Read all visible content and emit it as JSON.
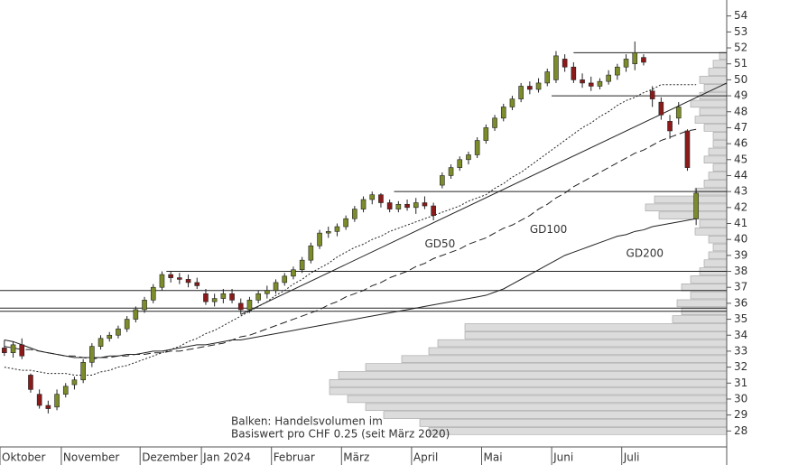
{
  "chart_data": {
    "type": "candlestick",
    "categories": [
      "Oktober",
      null,
      null,
      null,
      null,
      null,
      null,
      "November",
      null,
      null,
      null,
      null,
      null,
      null,
      null,
      null,
      "Dezember",
      null,
      null,
      null,
      null,
      null,
      null,
      "Jan 2024",
      null,
      null,
      null,
      null,
      null,
      null,
      null,
      "Februar",
      null,
      null,
      null,
      null,
      null,
      null,
      null,
      "März",
      null,
      null,
      null,
      null,
      null,
      null,
      null,
      "April",
      null,
      null,
      null,
      null,
      null,
      null,
      null,
      "Mai",
      null,
      null,
      null,
      null,
      null,
      null,
      null,
      "Juni",
      null,
      null,
      null,
      null,
      null,
      null,
      null,
      "Juli",
      null,
      null,
      null,
      null,
      null,
      null,
      null,
      null
    ],
    "ohlc": [
      [
        33.2,
        33.7,
        32.7,
        32.9
      ],
      [
        32.9,
        33.6,
        32.6,
        33.4
      ],
      [
        33.4,
        33.8,
        32.5,
        32.7
      ],
      [
        31.5,
        31.6,
        30.4,
        30.6
      ],
      [
        30.3,
        30.6,
        29.4,
        29.6
      ],
      [
        29.6,
        29.9,
        29.1,
        29.4
      ],
      [
        29.5,
        30.6,
        29.3,
        30.3
      ],
      [
        30.3,
        31.0,
        30.1,
        30.8
      ],
      [
        30.9,
        31.4,
        30.6,
        31.2
      ],
      [
        31.2,
        32.5,
        31.0,
        32.3
      ],
      [
        32.3,
        33.5,
        32.0,
        33.3
      ],
      [
        33.3,
        34.0,
        33.1,
        33.8
      ],
      [
        33.8,
        34.2,
        33.6,
        34.0
      ],
      [
        34.0,
        34.6,
        33.8,
        34.4
      ],
      [
        34.4,
        35.2,
        34.2,
        35.0
      ],
      [
        35.0,
        35.8,
        34.8,
        35.6
      ],
      [
        35.6,
        36.4,
        35.4,
        36.2
      ],
      [
        36.2,
        37.2,
        36.0,
        37.0
      ],
      [
        37.0,
        38.0,
        36.8,
        37.8
      ],
      [
        37.8,
        38.0,
        37.3,
        37.6
      ],
      [
        37.6,
        37.9,
        37.2,
        37.5
      ],
      [
        37.5,
        37.8,
        37.0,
        37.3
      ],
      [
        37.3,
        37.6,
        36.9,
        37.1
      ],
      [
        36.6,
        36.9,
        35.9,
        36.1
      ],
      [
        36.1,
        36.6,
        35.8,
        36.3
      ],
      [
        36.3,
        36.9,
        36.0,
        36.6
      ],
      [
        36.6,
        36.9,
        36.0,
        36.2
      ],
      [
        36.0,
        36.3,
        35.3,
        35.6
      ],
      [
        35.6,
        36.4,
        35.4,
        36.2
      ],
      [
        36.2,
        36.8,
        36.0,
        36.6
      ],
      [
        36.6,
        37.1,
        36.3,
        36.8
      ],
      [
        36.8,
        37.5,
        36.6,
        37.3
      ],
      [
        37.3,
        37.9,
        37.1,
        37.7
      ],
      [
        37.7,
        38.3,
        37.5,
        38.1
      ],
      [
        38.1,
        38.9,
        37.9,
        38.7
      ],
      [
        38.7,
        39.8,
        38.5,
        39.6
      ],
      [
        39.6,
        40.6,
        39.4,
        40.4
      ],
      [
        40.4,
        40.8,
        40.1,
        40.5
      ],
      [
        40.5,
        41.0,
        40.2,
        40.8
      ],
      [
        40.8,
        41.5,
        40.6,
        41.3
      ],
      [
        41.3,
        42.1,
        41.1,
        41.9
      ],
      [
        41.9,
        42.7,
        41.7,
        42.5
      ],
      [
        42.5,
        43.0,
        42.2,
        42.8
      ],
      [
        42.8,
        42.9,
        42.0,
        42.3
      ],
      [
        42.3,
        42.5,
        41.7,
        41.9
      ],
      [
        41.9,
        42.4,
        41.7,
        42.2
      ],
      [
        42.2,
        42.5,
        41.8,
        42.0
      ],
      [
        42.0,
        42.6,
        41.6,
        42.3
      ],
      [
        42.3,
        42.7,
        41.9,
        42.1
      ],
      [
        42.1,
        42.3,
        41.2,
        41.5
      ],
      [
        43.4,
        44.2,
        43.2,
        44.0
      ],
      [
        44.0,
        44.7,
        43.8,
        44.5
      ],
      [
        44.5,
        45.2,
        44.3,
        45.0
      ],
      [
        45.0,
        45.5,
        44.7,
        45.3
      ],
      [
        45.3,
        46.4,
        45.1,
        46.2
      ],
      [
        46.2,
        47.2,
        46.0,
        47.0
      ],
      [
        47.0,
        47.8,
        46.8,
        47.6
      ],
      [
        47.6,
        48.5,
        47.4,
        48.3
      ],
      [
        48.3,
        49.0,
        48.1,
        48.8
      ],
      [
        48.8,
        49.8,
        48.6,
        49.6
      ],
      [
        49.6,
        49.9,
        49.1,
        49.4
      ],
      [
        49.4,
        50.1,
        49.2,
        49.8
      ],
      [
        49.8,
        50.7,
        49.6,
        50.5
      ],
      [
        50.0,
        51.8,
        49.8,
        51.5
      ],
      [
        51.3,
        51.6,
        50.5,
        50.8
      ],
      [
        50.8,
        51.1,
        49.8,
        50.0
      ],
      [
        50.0,
        50.4,
        49.5,
        49.8
      ],
      [
        49.8,
        50.2,
        49.3,
        49.6
      ],
      [
        49.6,
        50.1,
        49.4,
        49.9
      ],
      [
        49.9,
        50.6,
        49.7,
        50.3
      ],
      [
        50.3,
        51.0,
        50.0,
        50.8
      ],
      [
        50.8,
        51.6,
        50.5,
        51.3
      ],
      [
        51.0,
        52.4,
        50.6,
        51.7
      ],
      [
        51.4,
        51.6,
        50.9,
        51.1
      ],
      [
        49.3,
        49.6,
        48.3,
        48.8
      ],
      [
        48.6,
        48.9,
        47.5,
        47.8
      ],
      [
        47.4,
        47.8,
        46.3,
        46.8
      ],
      [
        47.6,
        48.6,
        47.2,
        48.3
      ],
      [
        46.8,
        46.9,
        44.3,
        44.5
      ],
      [
        41.3,
        43.2,
        40.9,
        42.9
      ]
    ],
    "up_color": "#7d8c2a",
    "down_color": "#8b1a1a",
    "lines": [
      {
        "name": "GD50",
        "style": "dotted",
        "label_at": [
          48,
          39.7
        ],
        "values": [
          32.0,
          31.9,
          31.8,
          31.8,
          31.7,
          31.6,
          31.6,
          31.6,
          31.5,
          31.5,
          31.5,
          31.7,
          31.8,
          32.0,
          32.1,
          32.3,
          32.5,
          32.7,
          32.9,
          33.1,
          33.3,
          33.6,
          33.8,
          34.1,
          34.3,
          34.6,
          34.9,
          35.2,
          35.5,
          35.8,
          36.1,
          36.5,
          36.8,
          37.2,
          37.5,
          37.9,
          38.2,
          38.5,
          38.9,
          39.2,
          39.5,
          39.7,
          40.0,
          40.2,
          40.5,
          40.7,
          40.9,
          41.1,
          41.3,
          41.5,
          41.7,
          41.9,
          42.1,
          42.4,
          42.6,
          42.8,
          43.2,
          43.5,
          43.9,
          44.2,
          44.6,
          45.0,
          45.4,
          45.8,
          46.2,
          46.6,
          47.0,
          47.3,
          47.7,
          48.0,
          48.4,
          48.7,
          48.9,
          49.2,
          49.4,
          49.7,
          49.7,
          49.7,
          49.7,
          49.7
        ]
      },
      {
        "name": "GD100",
        "style": "dashed",
        "label_at": [
          60,
          40.6
        ],
        "values": [
          33.3,
          33.2,
          33.1,
          33.1,
          33.0,
          32.9,
          32.8,
          32.7,
          32.7,
          32.6,
          32.5,
          32.6,
          32.6,
          32.7,
          32.7,
          32.8,
          32.8,
          32.9,
          32.9,
          33.0,
          33.0,
          33.1,
          33.2,
          33.3,
          33.4,
          33.5,
          33.7,
          33.9,
          34.0,
          34.2,
          34.4,
          34.6,
          34.8,
          35.0,
          35.2,
          35.4,
          35.6,
          35.9,
          36.1,
          36.4,
          36.6,
          36.8,
          37.1,
          37.3,
          37.6,
          37.8,
          38.0,
          38.3,
          38.5,
          38.8,
          39.0,
          39.2,
          39.4,
          39.7,
          39.9,
          40.1,
          40.4,
          40.7,
          40.9,
          41.2,
          41.5,
          41.9,
          42.2,
          42.6,
          42.9,
          43.3,
          43.6,
          43.9,
          44.2,
          44.5,
          44.8,
          45.1,
          45.4,
          45.6,
          45.9,
          46.2,
          46.4,
          46.6,
          46.8,
          46.9
        ]
      },
      {
        "name": "GD200",
        "style": "solid",
        "label_at": [
          71,
          39.1
        ],
        "values": [
          33.7,
          33.6,
          33.4,
          33.2,
          33.0,
          32.9,
          32.8,
          32.7,
          32.6,
          32.6,
          32.6,
          32.6,
          32.7,
          32.7,
          32.8,
          32.8,
          32.9,
          33.0,
          33.0,
          33.1,
          33.2,
          33.3,
          33.4,
          33.4,
          33.5,
          33.6,
          33.7,
          33.7,
          33.8,
          33.9,
          34.0,
          34.1,
          34.2,
          34.3,
          34.4,
          34.5,
          34.6,
          34.7,
          34.8,
          34.9,
          35.0,
          35.1,
          35.2,
          35.3,
          35.4,
          35.5,
          35.6,
          35.7,
          35.8,
          35.9,
          36.0,
          36.1,
          36.2,
          36.3,
          36.4,
          36.5,
          36.7,
          36.9,
          37.2,
          37.5,
          37.8,
          38.1,
          38.4,
          38.7,
          39.0,
          39.2,
          39.4,
          39.6,
          39.8,
          40.0,
          40.2,
          40.3,
          40.5,
          40.6,
          40.8,
          40.9,
          41.0,
          41.1,
          41.2,
          41.3
        ]
      }
    ],
    "levels": [
      {
        "value": 38.0,
        "from": 19
      },
      {
        "value": 36.8,
        "from": 0
      },
      {
        "value": 35.7,
        "from": 0
      },
      {
        "value": 35.5,
        "from": 0
      },
      {
        "value": 43.0,
        "from": 45
      },
      {
        "value": 49.0,
        "from": 63
      },
      {
        "value": 51.7,
        "from": 65.5
      }
    ],
    "trendline": [
      [
        27,
        35.3
      ],
      [
        82.5,
        49.8
      ]
    ],
    "volume_profile": {
      "levels": [
        28.0,
        28.5,
        29.0,
        29.5,
        30.0,
        30.5,
        31.0,
        31.5,
        32.0,
        32.5,
        33.0,
        33.5,
        34.0,
        34.5,
        35.0,
        35.5,
        36.0,
        36.5,
        37.0,
        37.5,
        38.0,
        38.5,
        39.0,
        39.5,
        40.0,
        40.5,
        41.0,
        41.5,
        42.0,
        42.5,
        43.0,
        43.5,
        44.0,
        44.5,
        45.0,
        45.5,
        46.0,
        46.5,
        47.0,
        47.5,
        48.0,
        48.5,
        49.0,
        49.5,
        50.0,
        50.5,
        51.0,
        51.5
      ],
      "values": [
        330,
        340,
        380,
        400,
        420,
        440,
        440,
        430,
        400,
        360,
        330,
        320,
        290,
        290,
        60,
        50,
        55,
        40,
        50,
        40,
        30,
        25,
        20,
        15,
        20,
        35,
        30,
        75,
        90,
        80,
        35,
        25,
        20,
        15,
        25,
        20,
        15,
        15,
        25,
        35,
        30,
        40,
        30,
        25,
        30,
        20,
        15,
        8
      ],
      "color": "#dcdcdc"
    },
    "annotation": [
      "Balken: Handelsvolumen im",
      "Basiswert pro CHF 0.25 (seit März 2020)"
    ],
    "ylim": [
      27,
      55
    ],
    "yticks": [
      28,
      29,
      30,
      31,
      32,
      33,
      34,
      35,
      36,
      37,
      38,
      39,
      40,
      41,
      42,
      43,
      44,
      45,
      46,
      47,
      48,
      49,
      50,
      51,
      52,
      53,
      54
    ]
  }
}
